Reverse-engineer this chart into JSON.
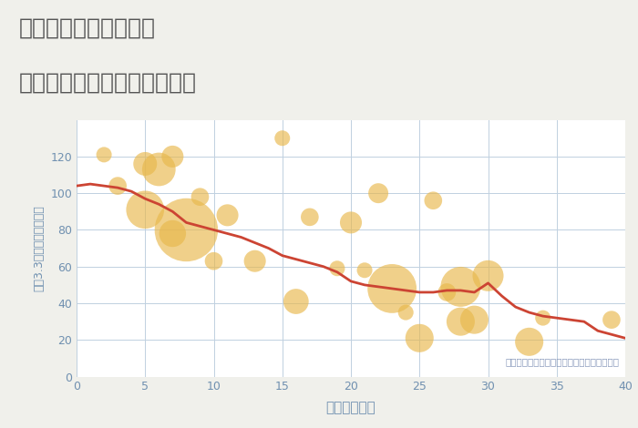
{
  "title_line1": "三重県四日市市川北町",
  "title_line2": "築年数別中古マンション価格",
  "xlabel": "築年数（年）",
  "ylabel": "坪（3.3㎡）単価（万円）",
  "annotation": "円の大きさは、取引のあった物件面積を示す",
  "background_color": "#f0f0eb",
  "plot_bg_color": "#ffffff",
  "grid_color": "#c0d0e0",
  "line_color": "#cc4433",
  "bubble_color": "#e8b84b",
  "bubble_alpha": 0.65,
  "title_color": "#555555",
  "tick_color": "#7090b0",
  "annotation_color": "#8899bb",
  "xlim": [
    0,
    40
  ],
  "ylim": [
    0,
    140
  ],
  "xticks": [
    0,
    5,
    10,
    15,
    20,
    25,
    30,
    35,
    40
  ],
  "yticks": [
    0,
    20,
    40,
    60,
    80,
    100,
    120
  ],
  "scatter_x": [
    2,
    3,
    5,
    5,
    6,
    7,
    7,
    8,
    9,
    10,
    11,
    13,
    15,
    16,
    17,
    19,
    20,
    21,
    22,
    23,
    24,
    25,
    26,
    27,
    28,
    28,
    29,
    30,
    33,
    34,
    39
  ],
  "scatter_y": [
    121,
    104,
    91,
    116,
    113,
    120,
    78,
    80,
    98,
    63,
    88,
    63,
    130,
    41,
    87,
    59,
    84,
    58,
    100,
    48,
    35,
    21,
    96,
    46,
    49,
    30,
    31,
    55,
    19,
    32,
    31
  ],
  "scatter_s": [
    150,
    200,
    900,
    350,
    700,
    300,
    450,
    2500,
    200,
    200,
    300,
    300,
    150,
    400,
    200,
    150,
    300,
    150,
    250,
    1500,
    150,
    500,
    200,
    200,
    1000,
    500,
    500,
    600,
    500,
    150,
    200
  ],
  "line_x": [
    0,
    1,
    2,
    3,
    4,
    5,
    6,
    7,
    8,
    9,
    10,
    11,
    12,
    13,
    14,
    15,
    16,
    17,
    18,
    19,
    20,
    21,
    22,
    23,
    24,
    25,
    26,
    27,
    28,
    29,
    30,
    31,
    32,
    33,
    34,
    35,
    36,
    37,
    38,
    39,
    40
  ],
  "line_y": [
    104,
    105,
    104,
    103,
    101,
    97,
    94,
    90,
    84,
    82,
    80,
    78,
    76,
    73,
    70,
    66,
    64,
    62,
    60,
    57,
    52,
    50,
    49,
    48,
    47,
    46,
    46,
    47,
    47,
    46,
    51,
    44,
    38,
    35,
    33,
    32,
    31,
    30,
    25,
    23,
    21
  ]
}
